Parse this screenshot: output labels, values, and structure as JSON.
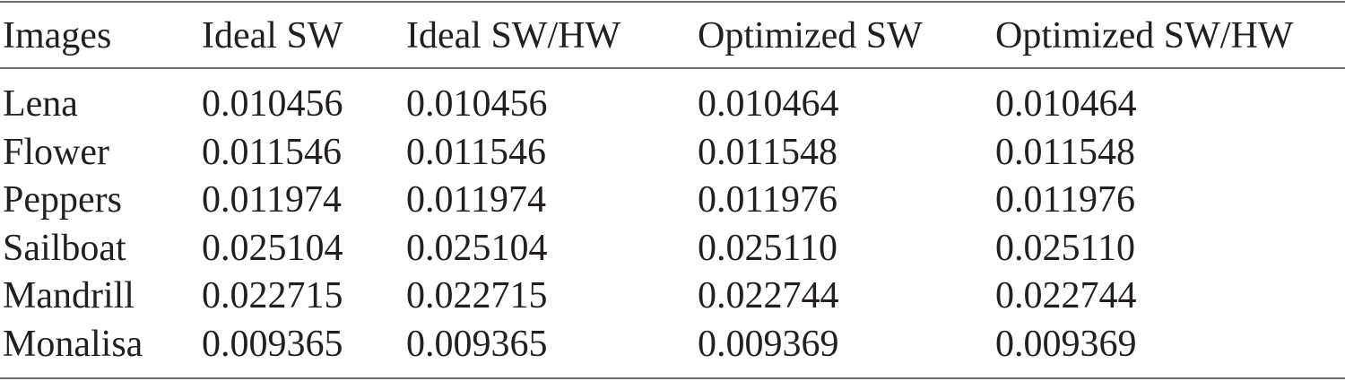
{
  "table": {
    "header": [
      "Images",
      "Ideal SW",
      "Ideal SW/HW",
      "Optimized SW",
      "Optimized SW/HW"
    ],
    "rows": [
      [
        "Lena",
        "0.010456",
        "0.010456",
        "0.010464",
        "0.010464"
      ],
      [
        "Flower",
        "0.011546",
        "0.011546",
        "0.011548",
        "0.011548"
      ],
      [
        "Peppers",
        "0.011974",
        "0.011974",
        "0.011976",
        "0.011976"
      ],
      [
        "Sailboat",
        "0.025104",
        "0.025104",
        "0.025110",
        "0.025110"
      ],
      [
        "Mandrill",
        "0.022715",
        "0.022715",
        "0.022744",
        "0.022744"
      ],
      [
        "Monalisa",
        "0.009365",
        "0.009365",
        "0.009369",
        "0.009369"
      ]
    ]
  }
}
